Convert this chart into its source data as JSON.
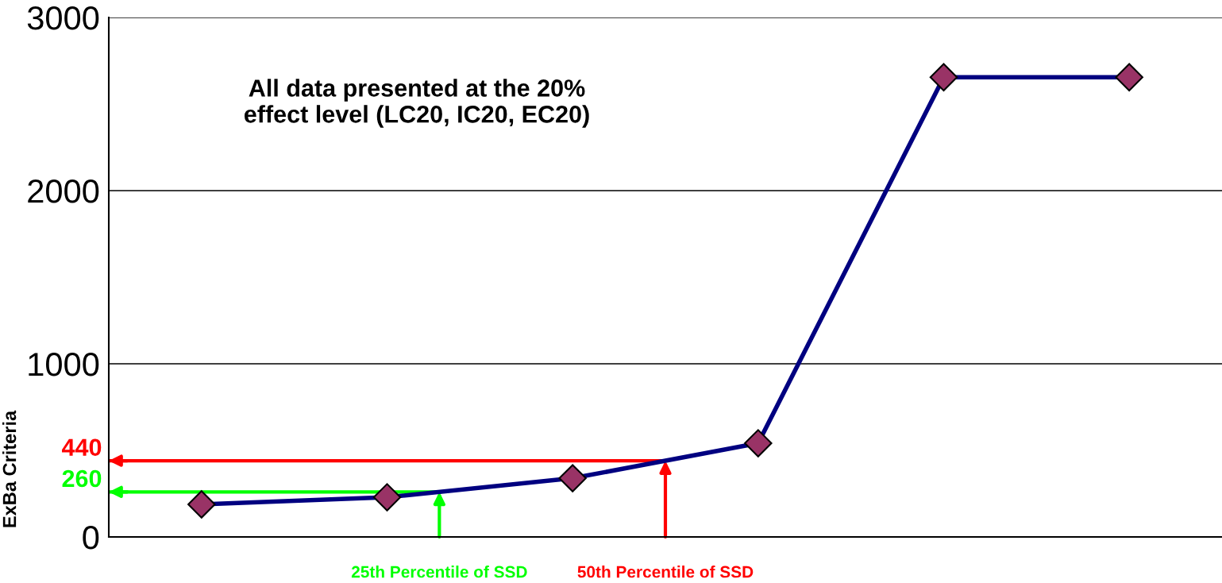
{
  "chart_data": {
    "type": "line",
    "ylabel": "ExBa Criteria",
    "categories": [
      null,
      null,
      null,
      null,
      null,
      null
    ],
    "series": [
      {
        "color": "#000080",
        "values": [
          188,
          229,
          339,
          541,
          2655,
          2655
        ]
      }
    ],
    "marker": "diamond",
    "grid": "y",
    "ylim": [
      0,
      3000
    ],
    "yticks": [
      0,
      1000,
      2000,
      3000
    ],
    "ref_lines": [
      {
        "axis": "y",
        "value": 260,
        "label": "260",
        "color": "#00ff00"
      },
      {
        "axis": "y",
        "value": 440,
        "label": "440",
        "color": "#ff0000"
      }
    ],
    "annotations": [
      "All data presented at the 20% effect level (LC20, IC20, EC20)",
      "25th Percentile of SSD",
      "50th Percentile of SSD"
    ]
  }
}
